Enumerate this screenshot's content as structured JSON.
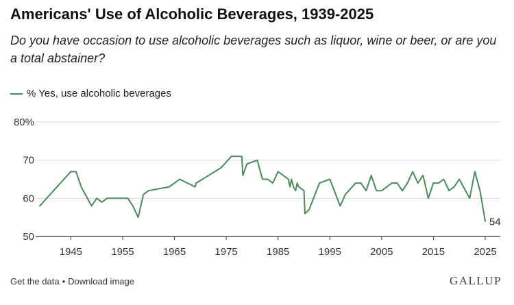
{
  "colors": {
    "line": "#4a8a5a",
    "grid": "#d9d9d9",
    "axis": "#333333",
    "text": "#333333"
  },
  "footer": {
    "get_data": "Get the data",
    "separator": "•",
    "download": "Download image",
    "brand": "GALLUP"
  },
  "chart_data": {
    "type": "line",
    "title": "Americans' Use of Alcoholic Beverages, 1939-2025",
    "subtitle": "Do you have occasion to use alcoholic beverages such as liquor, wine or beer, or are you a total abstainer?",
    "legend": "% Yes, use alcoholic beverages",
    "legend_position": "top-left",
    "xlim": [
      1939,
      2025
    ],
    "ylim": [
      50,
      80
    ],
    "yticks": [
      50,
      60,
      70,
      80
    ],
    "ytick_labels": [
      "50",
      "60",
      "70",
      "80%"
    ],
    "xticks": [
      1945,
      1955,
      1965,
      1975,
      1985,
      1995,
      2005,
      2015,
      2025
    ],
    "end_label": "54",
    "grid": true,
    "series": [
      {
        "name": "% Yes, use alcoholic beverages",
        "points": [
          [
            1939,
            58
          ],
          [
            1945,
            67
          ],
          [
            1946,
            67
          ],
          [
            1947,
            63
          ],
          [
            1949,
            58
          ],
          [
            1950,
            60
          ],
          [
            1951,
            59
          ],
          [
            1952,
            60
          ],
          [
            1956,
            60
          ],
          [
            1957,
            58
          ],
          [
            1958,
            55
          ],
          [
            1959,
            61
          ],
          [
            1960,
            62
          ],
          [
            1964,
            63
          ],
          [
            1966,
            65
          ],
          [
            1969,
            63
          ],
          [
            1969.2,
            64
          ],
          [
            1974,
            68
          ],
          [
            1976,
            71
          ],
          [
            1978,
            71
          ],
          [
            1978.2,
            66
          ],
          [
            1979,
            69
          ],
          [
            1981,
            70
          ],
          [
            1982,
            65
          ],
          [
            1983,
            65
          ],
          [
            1984,
            64
          ],
          [
            1985,
            67
          ],
          [
            1987,
            65
          ],
          [
            1987.3,
            63
          ],
          [
            1987.6,
            65
          ],
          [
            1988,
            63
          ],
          [
            1988.4,
            62
          ],
          [
            1988.7,
            64
          ],
          [
            1989,
            63
          ],
          [
            1990,
            62
          ],
          [
            1990.2,
            56
          ],
          [
            1991,
            57
          ],
          [
            1993,
            64
          ],
          [
            1995,
            65
          ],
          [
            1997,
            58
          ],
          [
            1998,
            61
          ],
          [
            2000,
            64
          ],
          [
            2001,
            64
          ],
          [
            2002,
            62
          ],
          [
            2003,
            66
          ],
          [
            2004,
            62
          ],
          [
            2005,
            62
          ],
          [
            2007,
            64
          ],
          [
            2008,
            64
          ],
          [
            2009,
            62
          ],
          [
            2010,
            64
          ],
          [
            2011,
            67
          ],
          [
            2012,
            64
          ],
          [
            2013,
            66
          ],
          [
            2014,
            60
          ],
          [
            2015,
            64
          ],
          [
            2016,
            64
          ],
          [
            2017,
            65
          ],
          [
            2018,
            62
          ],
          [
            2019,
            63
          ],
          [
            2020,
            65
          ],
          [
            2022,
            60
          ],
          [
            2023,
            67
          ],
          [
            2024,
            62
          ],
          [
            2025,
            54
          ]
        ]
      }
    ]
  }
}
